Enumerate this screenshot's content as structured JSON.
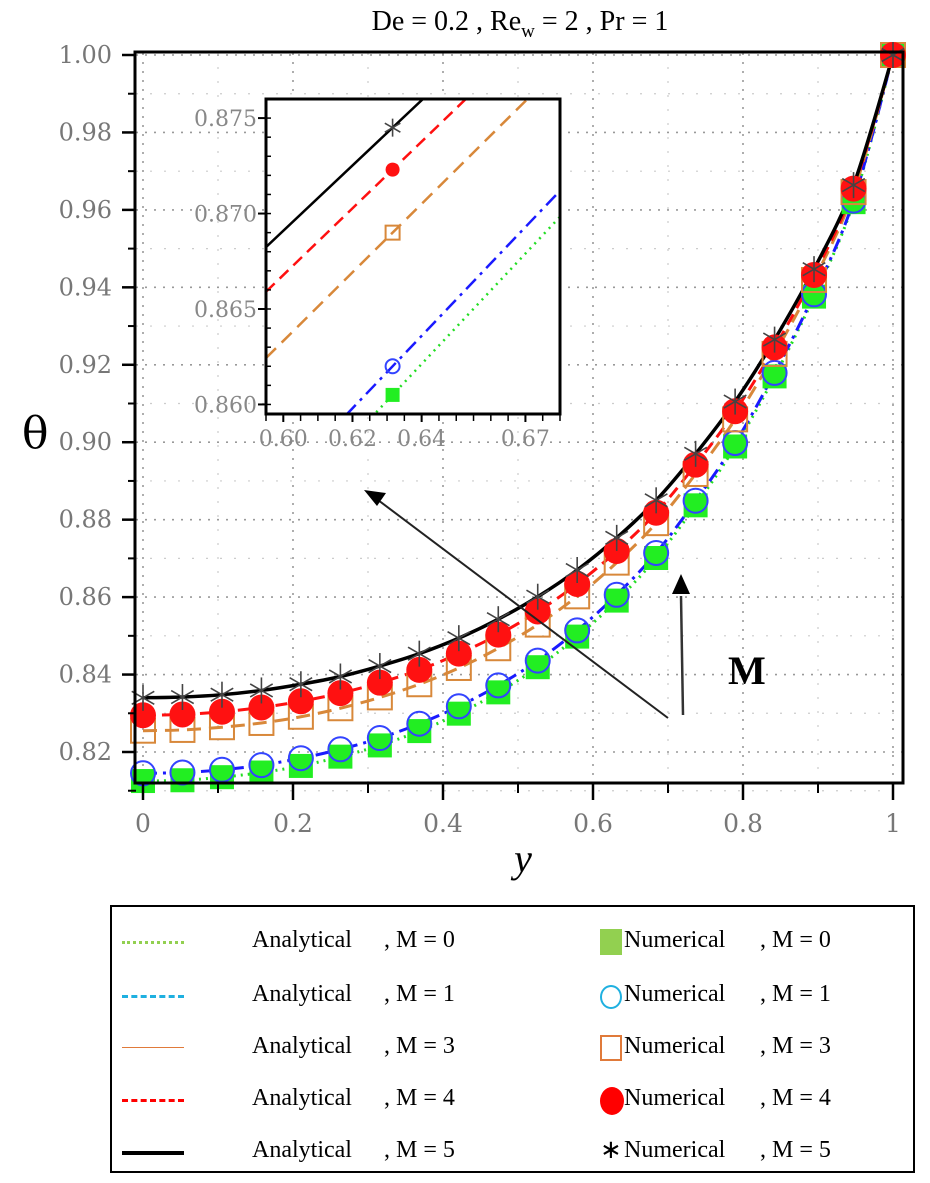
{
  "chart_data": {
    "type": "line",
    "title": "De = 0.2 ,  Re_w = 2  ,  Pr = 1",
    "title_parts": {
      "a": "De = 0.2 ,  Re",
      "sub": "w",
      "b": " = 2  ,  Pr = 1"
    },
    "xlabel": "y",
    "ylabel": "θ",
    "xlim": [
      0,
      1
    ],
    "ylim": [
      0.812,
      1.0
    ],
    "grid": true,
    "xticks": [
      "0",
      "0.2",
      "0.4",
      "0.6",
      "0.8",
      "1"
    ],
    "yticks": [
      "0.82",
      "0.84",
      "0.86",
      "0.88",
      "0.90",
      "0.92",
      "0.94",
      "0.96",
      "0.98",
      "1.00"
    ],
    "x": [
      0,
      0.0526,
      0.1053,
      0.1579,
      0.2105,
      0.2632,
      0.3158,
      0.3684,
      0.4211,
      0.4737,
      0.5263,
      0.5789,
      0.6316,
      0.6842,
      0.7368,
      0.7895,
      0.8421,
      0.8947,
      0.9474,
      1
    ],
    "series": [
      {
        "name": "M = 0",
        "M": 0,
        "color": "#22dd22",
        "legend_color": "#92d050",
        "line": "dotted",
        "marker": "filled-square",
        "values": [
          0.8125,
          0.8127,
          0.8135,
          0.8147,
          0.8164,
          0.8188,
          0.8217,
          0.8254,
          0.8299,
          0.8354,
          0.8419,
          0.8498,
          0.8591,
          0.8701,
          0.8837,
          0.8989,
          0.917,
          0.9376,
          0.962,
          1
        ]
      },
      {
        "name": "M = 1",
        "M": 1,
        "color": "#1a1aff",
        "legend_color": "#1fb0e0",
        "line": "dash-dot",
        "marker": "open-circle",
        "values": [
          0.8145,
          0.8147,
          0.8154,
          0.8166,
          0.8184,
          0.8207,
          0.8236,
          0.8273,
          0.8318,
          0.8372,
          0.8436,
          0.8514,
          0.8606,
          0.8714,
          0.8849,
          0.8998,
          0.9179,
          0.9382,
          0.9624,
          1
        ]
      },
      {
        "name": "M = 3",
        "M": 3,
        "color": "#d8883a",
        "legend_color": "#e07a3a",
        "line": "long-dash",
        "marker": "open-square",
        "values": [
          0.8255,
          0.8257,
          0.8264,
          0.8275,
          0.8291,
          0.8313,
          0.8341,
          0.8375,
          0.8417,
          0.8468,
          0.8529,
          0.8602,
          0.8689,
          0.8791,
          0.8918,
          0.9059,
          0.9228,
          0.9419,
          0.9646,
          1
        ]
      },
      {
        "name": "M = 4",
        "M": 4,
        "color": "#ff1010",
        "legend_color": "#ff0000",
        "line": "dashed",
        "marker": "filled-circle",
        "values": [
          0.8295,
          0.8297,
          0.8304,
          0.8315,
          0.8331,
          0.8352,
          0.8379,
          0.8412,
          0.8454,
          0.8503,
          0.8563,
          0.8634,
          0.8719,
          0.8818,
          0.8942,
          0.908,
          0.9245,
          0.9432,
          0.9655,
          1
        ]
      },
      {
        "name": "M = 5",
        "M": 5,
        "color": "#000000",
        "legend_color": "#000000",
        "line": "solid",
        "marker": "asterisk",
        "values": [
          0.834,
          0.8342,
          0.8348,
          0.8359,
          0.8375,
          0.8395,
          0.8422,
          0.8454,
          0.8494,
          0.8543,
          0.8601,
          0.867,
          0.8753,
          0.885,
          0.897,
          0.9105,
          0.9265,
          0.9447,
          0.9664,
          1
        ]
      }
    ],
    "inset": {
      "xlim": [
        0.595,
        0.68
      ],
      "ylim": [
        0.8595,
        0.876
      ],
      "xticks": [
        {
          "v": 0.6,
          "label": "0.60"
        },
        {
          "v": 0.62,
          "label": "0.62"
        },
        {
          "v": 0.64,
          "label": "0.64"
        },
        {
          "v": 0.67,
          "label": "0.67"
        }
      ],
      "yticks": [
        "0.860",
        "0.865",
        "0.870",
        "0.875"
      ],
      "marker_x": 0.6316,
      "marker_values": [
        0.8605,
        0.862,
        0.869,
        0.8723,
        0.8745
      ]
    },
    "annotation": {
      "label": "M",
      "direction": "increasing M"
    }
  },
  "legend": {
    "analytical": [
      {
        "label": "Analytical",
        "param": ", M = 0"
      },
      {
        "label": "Analytical",
        "param": ", M = 1"
      },
      {
        "label": "Analytical",
        "param": ", M = 3"
      },
      {
        "label": "Analytical",
        "param": ", M = 4"
      },
      {
        "label": "Analytical",
        "param": ", M = 5"
      }
    ],
    "numerical": [
      {
        "label": "Numerical",
        "param": ",  M = 0"
      },
      {
        "label": "Numerical",
        "param": ",  M = 1"
      },
      {
        "label": "Numerical",
        "param": ",  M = 3"
      },
      {
        "label": "Numerical",
        "param": ",  M = 4"
      },
      {
        "label": "Numerical",
        "param": ",  M = 5"
      }
    ],
    "asterisk_glyph": "∗"
  }
}
